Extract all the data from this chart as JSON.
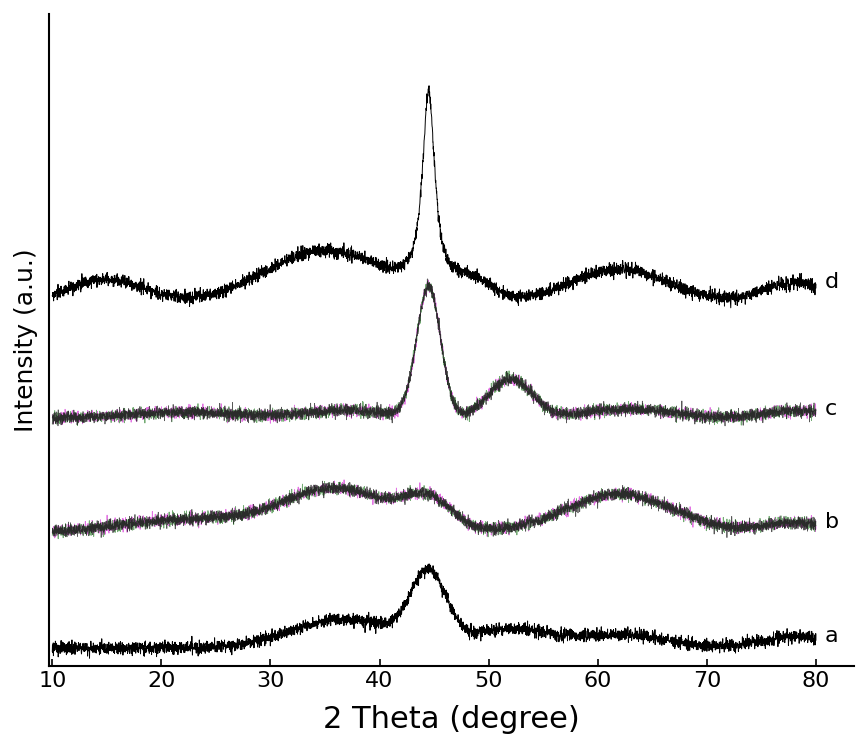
{
  "x_min": 10,
  "x_max": 80,
  "xlabel": "2 Theta (degree)",
  "ylabel": "Intensity (a.u.)",
  "xlabel_fontsize": 22,
  "ylabel_fontsize": 18,
  "tick_fontsize": 16,
  "xticks": [
    10,
    20,
    30,
    40,
    50,
    60,
    70,
    80
  ],
  "background_color": "#ffffff",
  "noise_amplitude": 0.006,
  "offsets": [
    0.0,
    0.22,
    0.44,
    0.66
  ],
  "labels": [
    "a",
    "b",
    "c",
    "d"
  ],
  "label_fontsize": 16,
  "figsize": [
    8.68,
    7.48
  ],
  "dpi": 100
}
